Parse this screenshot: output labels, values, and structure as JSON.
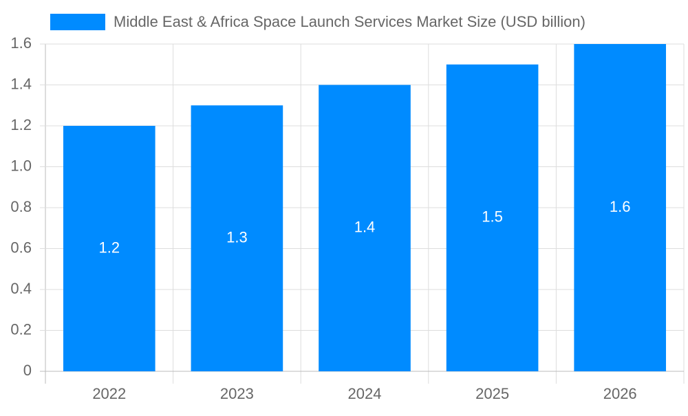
{
  "chart_data": {
    "type": "bar",
    "categories": [
      "2022",
      "2023",
      "2024",
      "2025",
      "2026"
    ],
    "series": [
      {
        "name": "Middle East & Africa Space Launch Services Market Size (USD billion)",
        "color": "#008bff",
        "values": [
          1.2,
          1.3,
          1.4,
          1.5,
          1.6
        ]
      }
    ],
    "ylim": [
      0,
      1.6
    ],
    "yticks": [
      0,
      0.2,
      0.4,
      0.6,
      0.8,
      {
        "value": 1,
        "label": "1.0"
      },
      1.2,
      1.4,
      1.6
    ],
    "grid": true,
    "legend": "top"
  }
}
